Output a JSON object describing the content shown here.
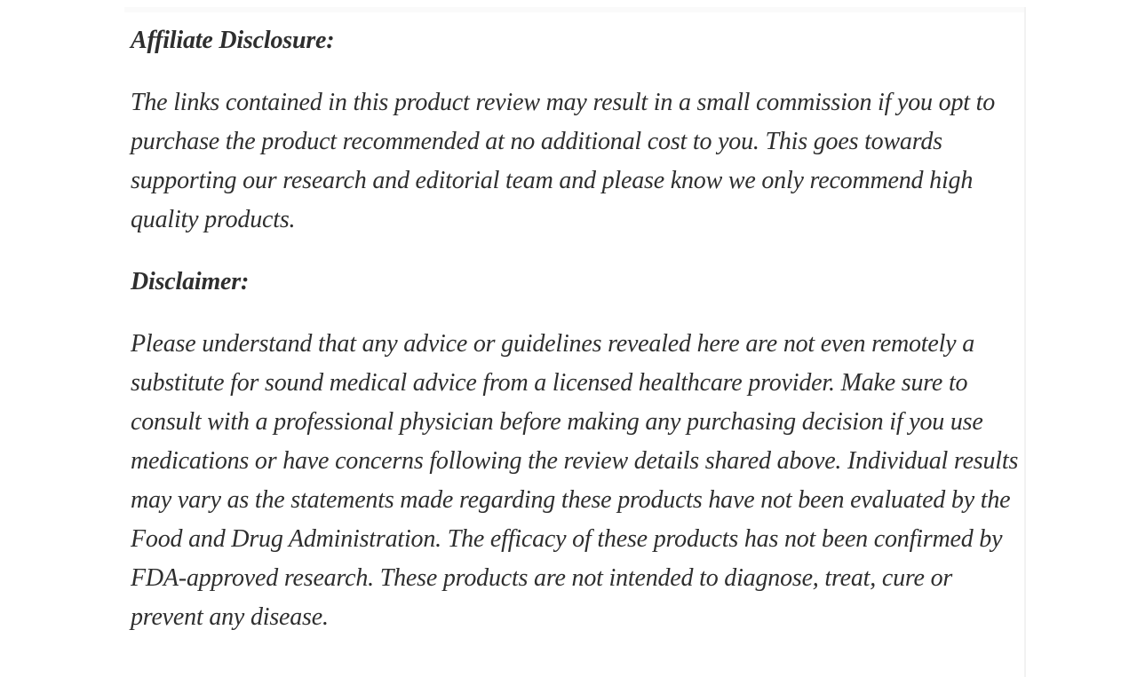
{
  "page": {
    "background": "#ffffff",
    "text_color": "#2e2e2e",
    "divider_color": "#fafafa"
  },
  "article": {
    "sections": [
      {
        "heading": "Affiliate Disclosure:",
        "body": "The links contained in this product review may result in a small commission if you opt to purchase the product recommended at no additional cost to you. This goes towards supporting our research and editorial team and please know we only recommend high quality products."
      },
      {
        "heading": "Disclaimer:",
        "body": "Please understand that any advice or guidelines revealed here are not even remotely a substitute for sound medical advice from a licensed healthcare provider. Make sure to consult with a professional physician before making any purchasing decision if you use medications or have concerns following the review details shared above. Individual results may vary as the statements made regarding these products have not been evaluated by the Food and Drug Administration. The efficacy of these products has not been confirmed by FDA-approved research. These products are not intended to diagnose, treat, cure or prevent any disease."
      }
    ]
  }
}
